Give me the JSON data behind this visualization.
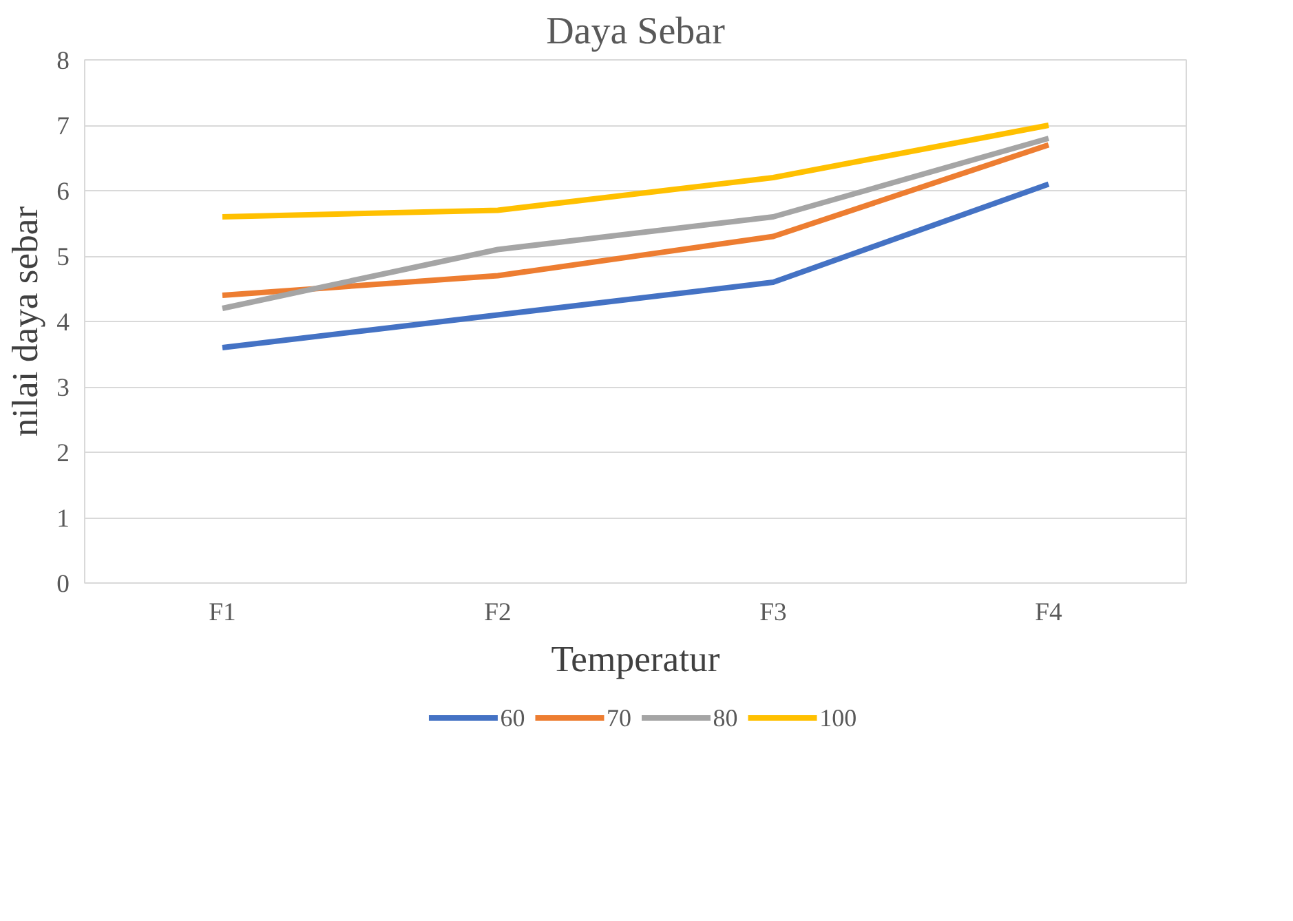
{
  "chart_data": {
    "type": "line",
    "title": "Daya Sebar",
    "xlabel": "Temperatur",
    "ylabel": "nilai daya sebar",
    "categories": [
      "F1",
      "F2",
      "F3",
      "F4"
    ],
    "series": [
      {
        "name": "60",
        "color": "#4472c4",
        "values": [
          3.6,
          4.1,
          4.6,
          6.1
        ]
      },
      {
        "name": "70",
        "color": "#ed7d31",
        "values": [
          4.4,
          4.7,
          5.3,
          6.7
        ]
      },
      {
        "name": "80",
        "color": "#a5a5a5",
        "values": [
          4.2,
          5.1,
          5.6,
          6.8
        ]
      },
      {
        "name": "100",
        "color": "#ffc000",
        "values": [
          5.6,
          5.7,
          6.2,
          7.0
        ]
      }
    ],
    "ylim": [
      0,
      8
    ],
    "yticks": [
      0,
      1,
      2,
      3,
      4,
      5,
      6,
      7,
      8
    ],
    "grid": "y",
    "legend": "bottom",
    "marker": "none",
    "line_style": "solid"
  }
}
